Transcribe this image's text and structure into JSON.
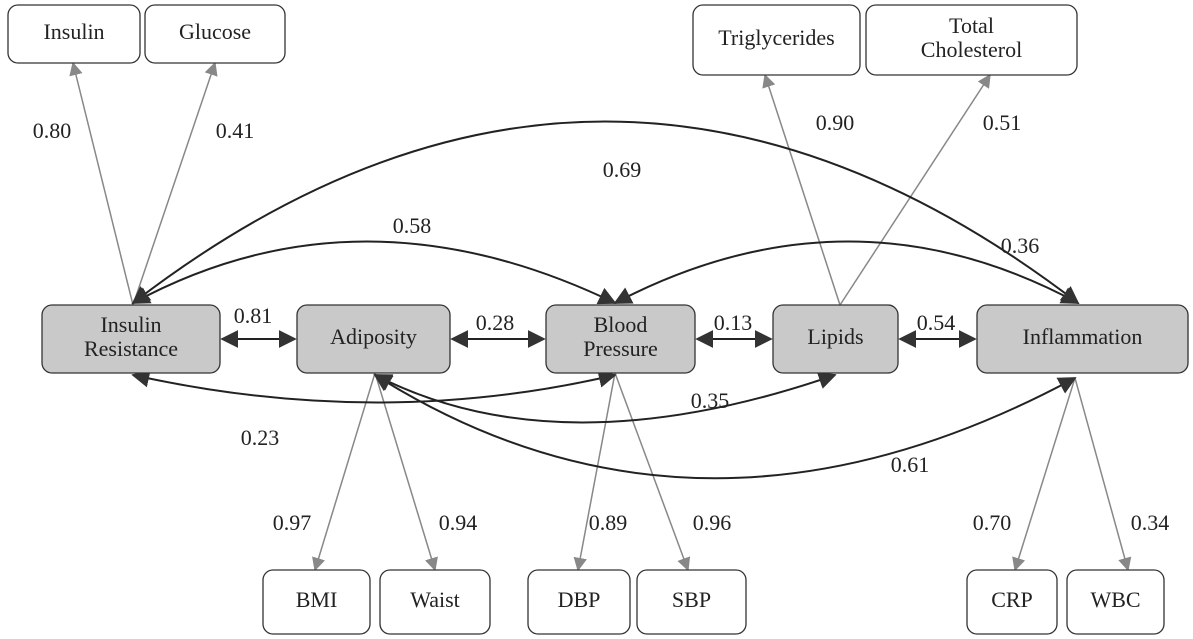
{
  "factors": [
    {
      "lines": [
        "Insulin",
        "Resistance"
      ]
    },
    {
      "lines": [
        "Adiposity"
      ]
    },
    {
      "lines": [
        "Blood",
        "Pressure"
      ]
    },
    {
      "lines": [
        "Lipids"
      ]
    },
    {
      "lines": [
        "Inflammation"
      ]
    }
  ],
  "indicators": [
    {
      "lines": [
        "Insulin"
      ]
    },
    {
      "lines": [
        "Glucose"
      ]
    },
    {
      "lines": [
        "Triglycerides"
      ]
    },
    {
      "lines": [
        "Total",
        "Cholesterol"
      ]
    },
    {
      "lines": [
        "BMI"
      ]
    },
    {
      "lines": [
        "Waist"
      ]
    },
    {
      "lines": [
        "DBP"
      ]
    },
    {
      "lines": [
        "SBP"
      ]
    },
    {
      "lines": [
        "CRP"
      ]
    },
    {
      "lines": [
        "WBC"
      ]
    }
  ],
  "loadings": [
    "0.80",
    "0.41",
    "0.90",
    "0.51",
    "0.97",
    "0.94",
    "0.89",
    "0.96",
    "0.70",
    "0.34"
  ],
  "correlations": [
    "0.81",
    "0.28",
    "0.13",
    "0.54",
    "0.69",
    "0.58",
    "0.36",
    "0.35",
    "0.23",
    "0.61"
  ]
}
